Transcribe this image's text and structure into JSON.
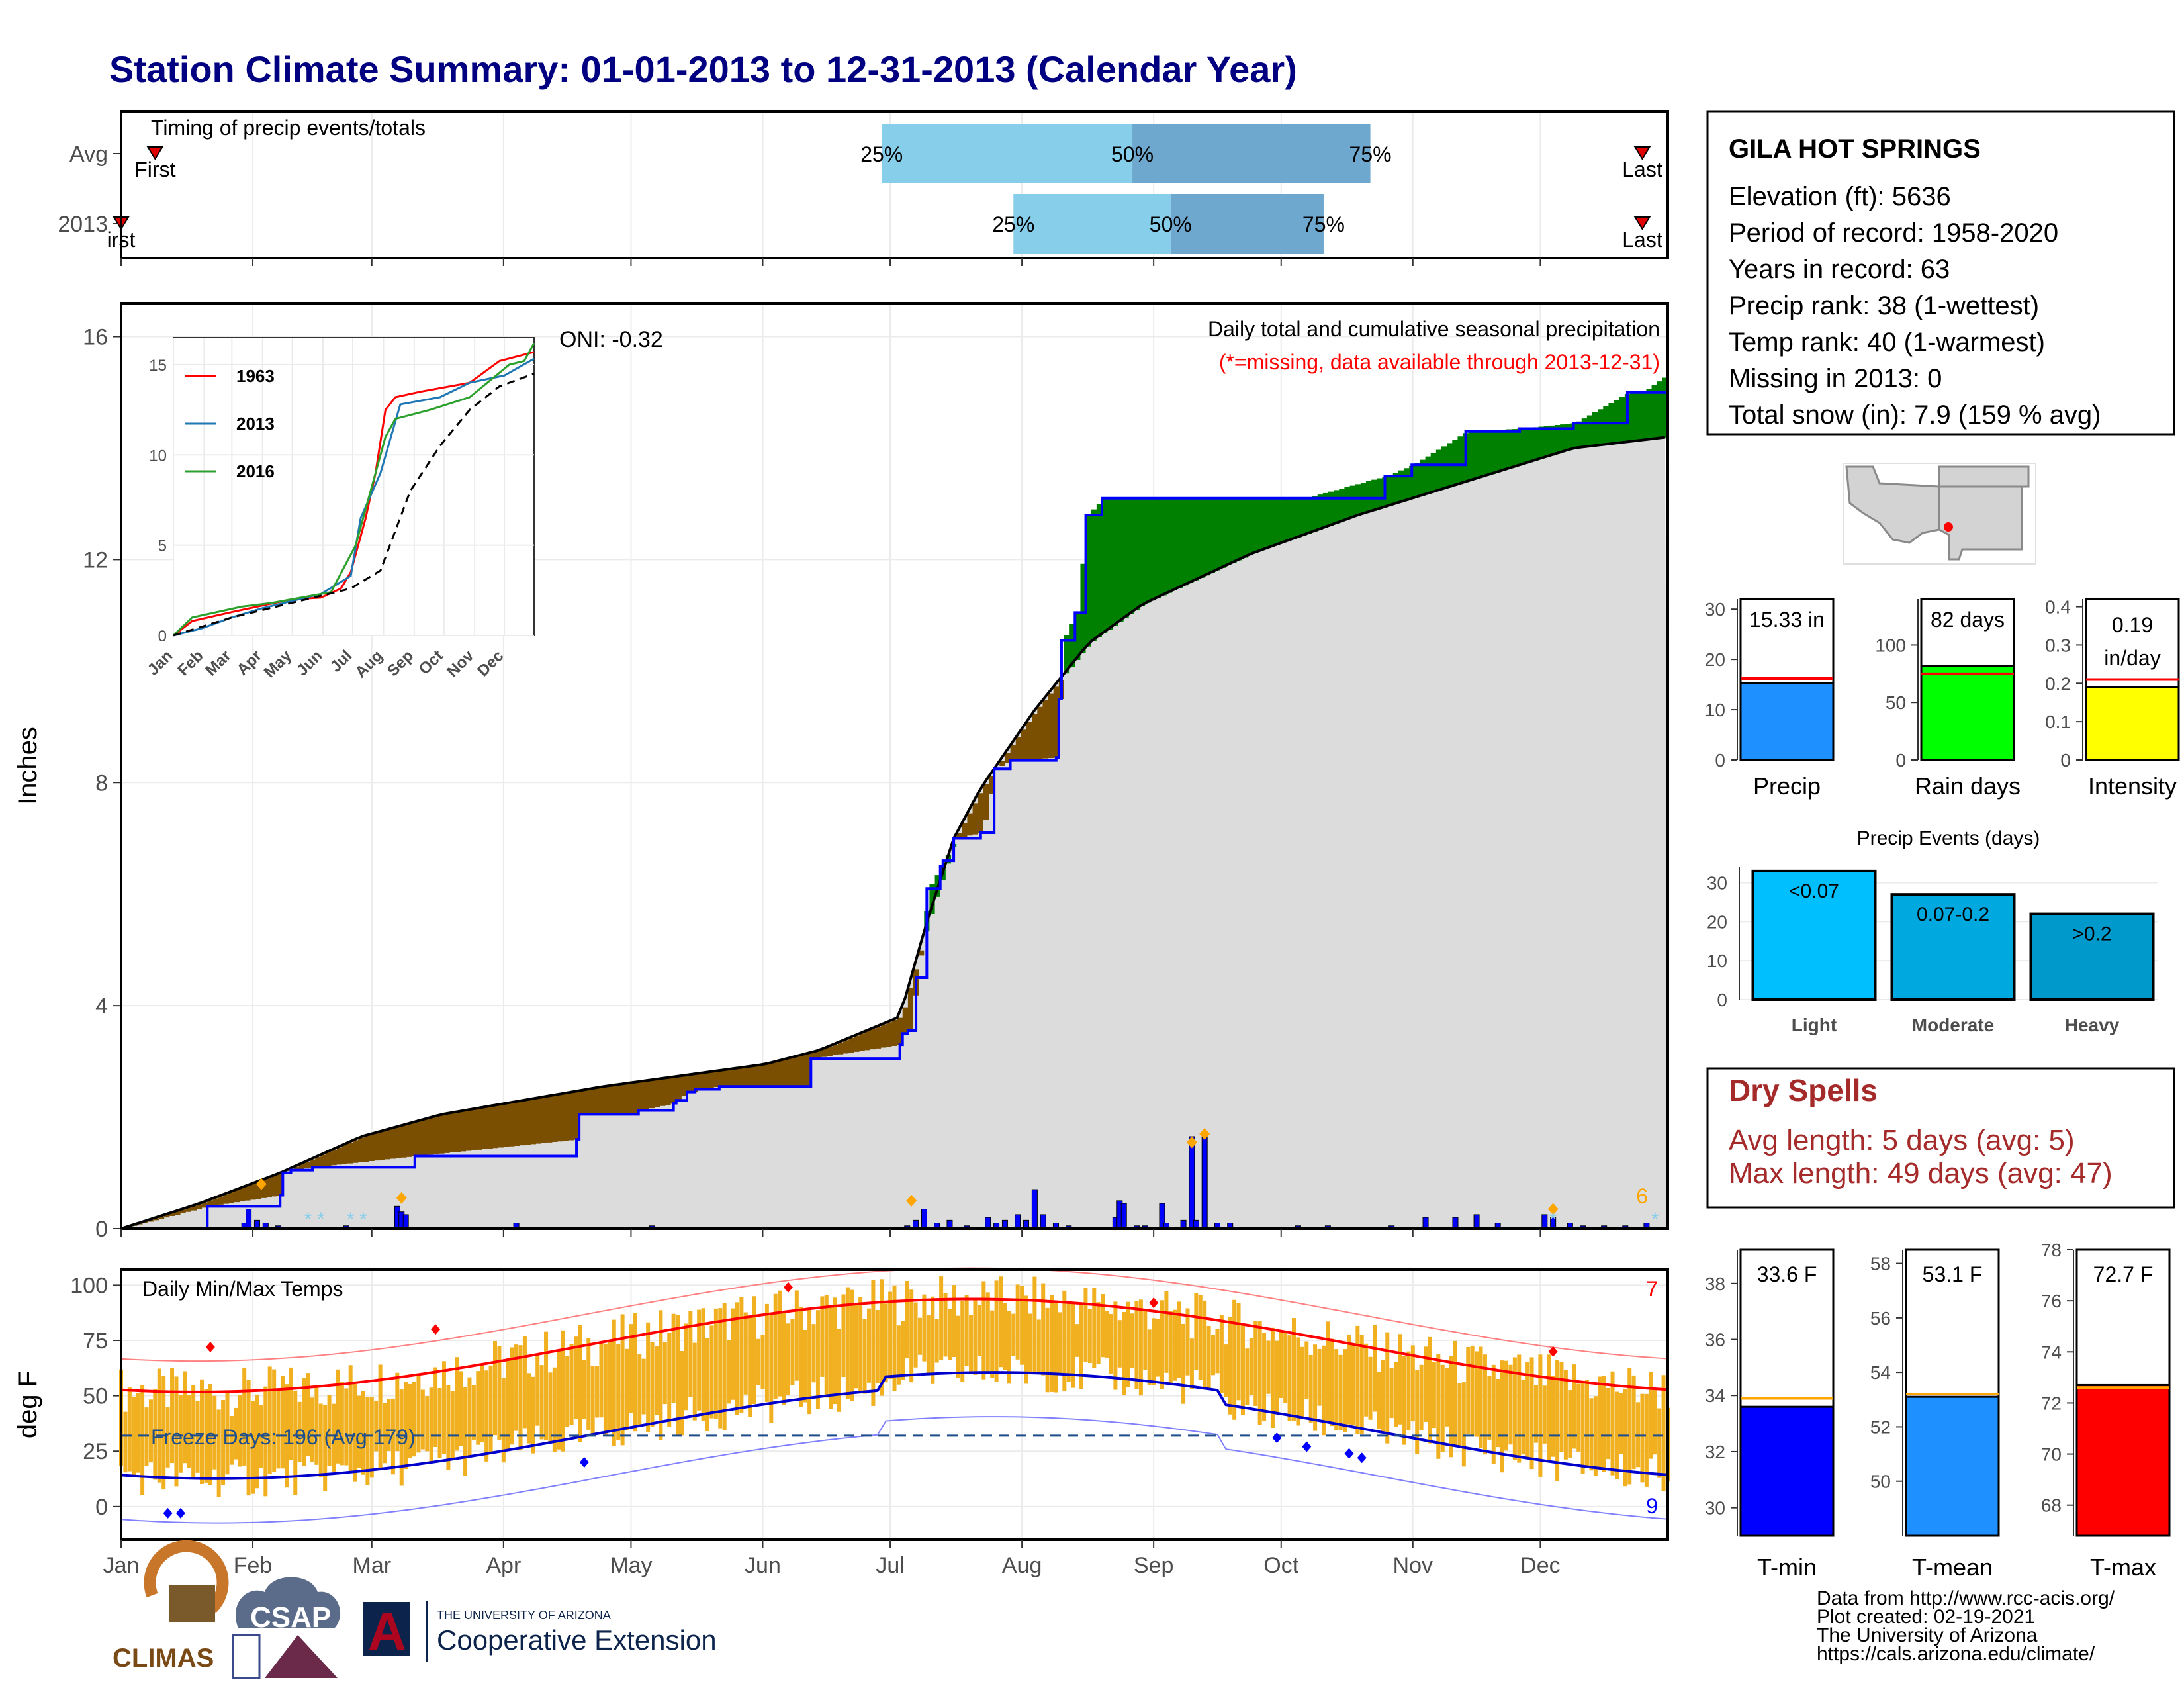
{
  "chart_data": {
    "type": "line",
    "title": "Station Climate Summary: 01-01-2013 to 12-31-2013 (Calendar Year)",
    "months": [
      "Jan",
      "Feb",
      "Mar",
      "Apr",
      "May",
      "Jun",
      "Jul",
      "Aug",
      "Sep",
      "Oct",
      "Nov",
      "Dec"
    ],
    "timing": {
      "caption": "Timing of precip events/totals",
      "rows": [
        "Avg",
        "2013"
      ],
      "pct_labels": [
        "25%",
        "50%",
        "75%"
      ],
      "first_label": "First",
      "first_label_2013": "irst",
      "last_label": "Last",
      "avg_doy": {
        "first": 9,
        "p25": 180,
        "p50": 239,
        "p75": 295,
        "last": 359
      },
      "y2013_doy": {
        "first": 1,
        "p25": 211,
        "p50": 248,
        "p75": 284,
        "last": 359
      }
    },
    "precip": {
      "ylabel": "Inches",
      "yticks": [
        0,
        4,
        8,
        12,
        16
      ],
      "ylim": [
        0,
        16.6
      ],
      "heading": "Daily total and cumulative seasonal precipitation",
      "missing_note": "(*=missing, data available through 2013-12-31)",
      "oni": "ONI: -0.32",
      "count_label": "6",
      "cumulative_2013": [
        [
          1,
          0
        ],
        [
          33,
          0.4
        ],
        [
          60,
          0.6
        ],
        [
          61,
          1.0
        ],
        [
          64,
          1.05
        ],
        [
          72,
          1.1
        ],
        [
          110,
          1.3
        ],
        [
          170,
          1.6
        ],
        [
          171,
          2.05
        ],
        [
          175,
          2.05
        ],
        [
          192,
          2.05
        ],
        [
          193,
          2.12
        ],
        [
          206,
          2.25
        ],
        [
          207,
          2.3
        ],
        [
          211,
          2.45
        ],
        [
          213,
          2.45
        ],
        [
          214,
          2.5
        ],
        [
          223,
          2.55
        ],
        [
          256,
          2.55
        ],
        [
          257,
          3.05
        ],
        [
          290,
          3.3
        ],
        [
          291,
          3.5
        ],
        [
          292,
          3.5
        ],
        [
          293,
          3.55
        ],
        [
          296,
          4.5
        ],
        [
          300,
          6.1
        ],
        [
          305,
          6.5
        ],
        [
          306,
          6.6
        ],
        [
          310,
          7.0
        ],
        [
          320,
          7.1
        ],
        [
          325,
          8.25
        ],
        [
          331,
          8.4
        ],
        [
          348,
          8.45
        ],
        [
          349,
          9.5
        ],
        [
          350,
          10.55
        ],
        [
          355,
          11.05
        ],
        [
          359,
          12.8
        ],
        [
          365,
          13.1
        ],
        [
          380,
          13.1
        ],
        [
          410,
          13.1
        ],
        [
          440,
          13.1
        ],
        [
          470,
          13.5
        ],
        [
          480,
          13.7
        ],
        [
          500,
          14.3
        ],
        [
          520,
          14.35
        ],
        [
          540,
          14.45
        ],
        [
          560,
          15.0
        ],
        [
          565,
          15.0
        ],
        [
          575,
          15.33
        ]
      ],
      "avg_to_date": [
        [
          1,
          0
        ],
        [
          30,
          0.45
        ],
        [
          60,
          1.0
        ],
        [
          90,
          1.65
        ],
        [
          120,
          2.05
        ],
        [
          150,
          2.3
        ],
        [
          180,
          2.55
        ],
        [
          210,
          2.75
        ],
        [
          240,
          2.95
        ],
        [
          260,
          3.2
        ],
        [
          270,
          3.4
        ],
        [
          290,
          3.8
        ],
        [
          300,
          5.5
        ],
        [
          310,
          7.0
        ],
        [
          320,
          7.9
        ],
        [
          330,
          8.6
        ],
        [
          340,
          9.3
        ],
        [
          350,
          9.9
        ],
        [
          360,
          10.5
        ],
        [
          380,
          11.2
        ],
        [
          420,
          12.1
        ],
        [
          460,
          12.8
        ],
        [
          500,
          13.4
        ],
        [
          540,
          14.0
        ],
        [
          575,
          14.2
        ]
      ],
      "daily_bars": [
        [
          30,
          0.1
        ],
        [
          31,
          0.35
        ],
        [
          33,
          0.15
        ],
        [
          35,
          0.1
        ],
        [
          38,
          0.05
        ],
        [
          54,
          0.05
        ],
        [
          66,
          0.4
        ],
        [
          67,
          0.3
        ],
        [
          68,
          0.25
        ],
        [
          94,
          0.1
        ],
        [
          126,
          0.05
        ],
        [
          186,
          0.05
        ],
        [
          188,
          0.15
        ],
        [
          190,
          0.35
        ],
        [
          193,
          0.1
        ],
        [
          196,
          0.15
        ],
        [
          200,
          0.05
        ],
        [
          205,
          0.2
        ],
        [
          207,
          0.1
        ],
        [
          209,
          0.15
        ],
        [
          212,
          0.25
        ],
        [
          214,
          0.15
        ],
        [
          216,
          0.7
        ],
        [
          218,
          0.25
        ],
        [
          221,
          0.1
        ],
        [
          224,
          0.05
        ],
        [
          235,
          0.2
        ],
        [
          236,
          0.5
        ],
        [
          237,
          0.45
        ],
        [
          240,
          0.05
        ],
        [
          242,
          0.05
        ],
        [
          246,
          0.45
        ],
        [
          247,
          0.1
        ],
        [
          251,
          0.15
        ],
        [
          253,
          1.65
        ],
        [
          254,
          0.15
        ],
        [
          256,
          1.7
        ],
        [
          259,
          0.1
        ],
        [
          262,
          0.1
        ],
        [
          278,
          0.05
        ],
        [
          285,
          0.05
        ],
        [
          300,
          0.05
        ],
        [
          308,
          0.2
        ],
        [
          315,
          0.2
        ],
        [
          320,
          0.25
        ],
        [
          325,
          0.1
        ],
        [
          336,
          0.25
        ],
        [
          338,
          0.2
        ],
        [
          342,
          0.1
        ],
        [
          345,
          0.05
        ],
        [
          350,
          0.05
        ],
        [
          355,
          0.05
        ],
        [
          360,
          0.1
        ]
      ],
      "inset": {
        "legend": [
          "1963",
          "2013",
          "2016"
        ],
        "months": [
          "Jan",
          "Feb",
          "Mar",
          "Apr",
          "May",
          "Jun",
          "Jul",
          "Aug",
          "Sep",
          "Oct",
          "Nov",
          "Dec"
        ],
        "yticks": [
          0,
          5,
          10,
          15
        ],
        "ylim": [
          0,
          16.5
        ]
      }
    },
    "temps": {
      "ylabel": "deg F",
      "yticks": [
        0,
        25,
        50,
        75,
        100
      ],
      "ylim": [
        -15,
        107
      ],
      "heading": "Daily Min/Max Temps",
      "freeze_label": "Freeze Days: 196 (Avg 179)",
      "count_high": "7",
      "count_low": "9"
    },
    "station": {
      "name": "GILA HOT SPRINGS",
      "lines": [
        "Elevation (ft): 5636",
        "Period of record: 1958-2020",
        "Years in record: 63",
        "Precip rank: 38 (1-wettest)",
        "Temp rank: 40 (1-warmest)",
        "Missing in 2013: 0",
        "Total snow (in): 7.9 (159 % avg)"
      ]
    },
    "summary_bars": [
      {
        "label": "Precip",
        "value_text": "15.33 in",
        "value": 15.33,
        "avg": 16.2,
        "ylim": [
          0,
          32
        ],
        "yticks": [
          0,
          10,
          20,
          30
        ],
        "color": "#1e90ff"
      },
      {
        "label": "Rain days",
        "value_text": "82 days",
        "value": 82,
        "avg": 75,
        "ylim": [
          0,
          140
        ],
        "yticks": [
          0,
          50,
          100
        ],
        "color": "#00ff00"
      },
      {
        "label": "Intensity",
        "value_text": "0.19 in/day",
        "value": 0.19,
        "avg": 0.21,
        "ylim": [
          0,
          0.42
        ],
        "yticks": [
          0.0,
          0.1,
          0.2,
          0.3,
          0.4
        ],
        "color": "#ffff00"
      }
    ],
    "precip_events": {
      "title": "Precip Events (days)",
      "categories": [
        "Light",
        "Moderate",
        "Heavy"
      ],
      "labels": [
        "<0.07",
        "0.07-0.2",
        ">0.2"
      ],
      "values": [
        33,
        27,
        22
      ],
      "ylim": [
        0,
        34
      ],
      "yticks": [
        0,
        10,
        20,
        30
      ]
    },
    "dry_spells": {
      "title": "Dry Spells",
      "avg_text": "Avg length: 5 days (avg: 5)",
      "max_text": "Max length: 49 days (avg: 47)"
    },
    "temp_bars": [
      {
        "label": "T-min",
        "value_text": "33.6 F",
        "value": 33.6,
        "avg": 33.9,
        "ylim": [
          29,
          39.2
        ],
        "yticks": [
          30,
          32,
          34,
          36,
          38
        ],
        "color": "#0000ff"
      },
      {
        "label": "T-mean",
        "value_text": "53.1 F",
        "value": 53.1,
        "avg": 53.2,
        "ylim": [
          48,
          58.5
        ],
        "yticks": [
          50,
          52,
          54,
          56,
          58
        ],
        "color": "#1e90ff"
      },
      {
        "label": "T-max",
        "value_text": "72.7 F",
        "value": 72.7,
        "avg": 72.6,
        "ylim": [
          66.8,
          78
        ],
        "yticks": [
          68,
          70,
          72,
          74,
          76,
          78
        ],
        "color": "#ff0000"
      }
    ]
  },
  "footer": {
    "credits": [
      "Data from http://www.rcc-acis.org/",
      "Plot created: 02-19-2021",
      "The University of Arizona",
      "https://cals.arizona.edu/climate/"
    ],
    "logo_climas": "CLIMAS",
    "logo_csap": "CSAP",
    "logo_ua_small": "THE UNIVERSITY OF ARIZONA",
    "logo_ua_big": "Cooperative Extension"
  }
}
